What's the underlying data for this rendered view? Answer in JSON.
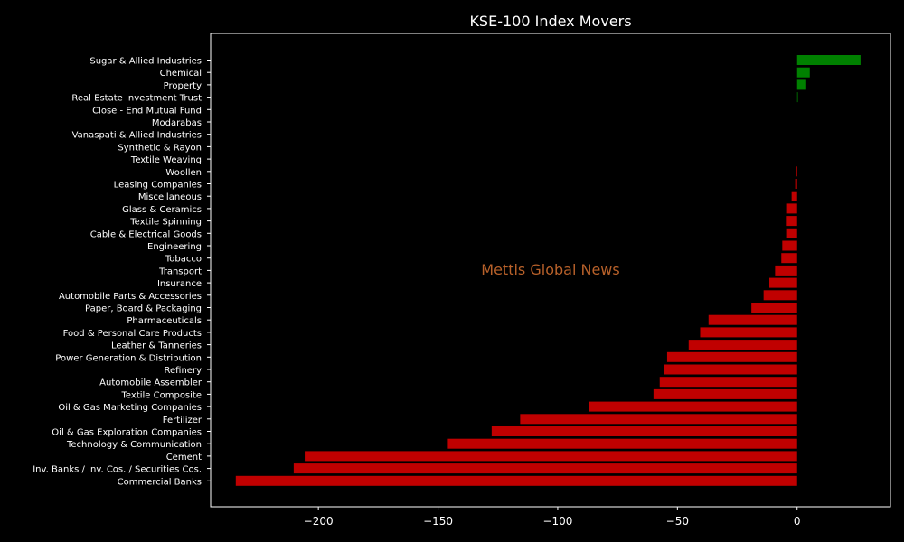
{
  "chart_data": {
    "type": "bar",
    "orientation": "horizontal",
    "title": "KSE-100 Index Movers",
    "xlabel": "",
    "ylabel": "",
    "xlim": [
      -245,
      39
    ],
    "xticks": [
      -200,
      -150,
      -100,
      -50,
      0
    ],
    "xtick_labels": [
      "−200",
      "−150",
      "−100",
      "−50",
      "0"
    ],
    "grid": false,
    "watermark": "Mettis Global News",
    "colors": {
      "positive": "#008000",
      "negative": "#c00000",
      "background": "#000000",
      "text": "#ffffff",
      "watermark": "#b8612a"
    },
    "categories": [
      "Sugar & Allied Industries",
      "Chemical",
      "Property",
      "Real Estate Investment Trust",
      "Close - End Mutual Fund",
      "Modarabas",
      "Vanaspati & Allied Industries",
      "Synthetic & Rayon",
      "Textile Weaving",
      "Woollen",
      "Leasing Companies",
      "Miscellaneous",
      "Glass & Ceramics",
      "Textile Spinning",
      "Cable & Electrical Goods",
      "Engineering",
      "Tobacco",
      "Transport",
      "Insurance",
      "Automobile Parts & Accessories",
      "Paper, Board & Packaging",
      "Pharmaceuticals",
      "Food & Personal Care Products",
      "Leather & Tanneries",
      "Power Generation & Distribution",
      "Refinery",
      "Automobile Assembler",
      "Textile Composite",
      "Oil & Gas Marketing Companies",
      "Fertilizer",
      "Oil & Gas Exploration Companies",
      "Technology & Communication",
      "Cement",
      "Inv. Banks / Inv. Cos. / Securities Cos.",
      "Commercial Banks"
    ],
    "values": [
      26.5,
      5.3,
      3.8,
      0.2,
      0,
      0,
      0,
      0,
      0,
      -0.6,
      -0.8,
      -2.3,
      -4.2,
      -4.3,
      -4.2,
      -6.2,
      -6.6,
      -9.2,
      -11.6,
      -14.0,
      -19.1,
      -37.0,
      -40.5,
      -45.3,
      -54.3,
      -55.5,
      -57.4,
      -60.0,
      -87.1,
      -115.7,
      -127.6,
      -145.9,
      -205.7,
      -210.3,
      -234.5
    ]
  }
}
